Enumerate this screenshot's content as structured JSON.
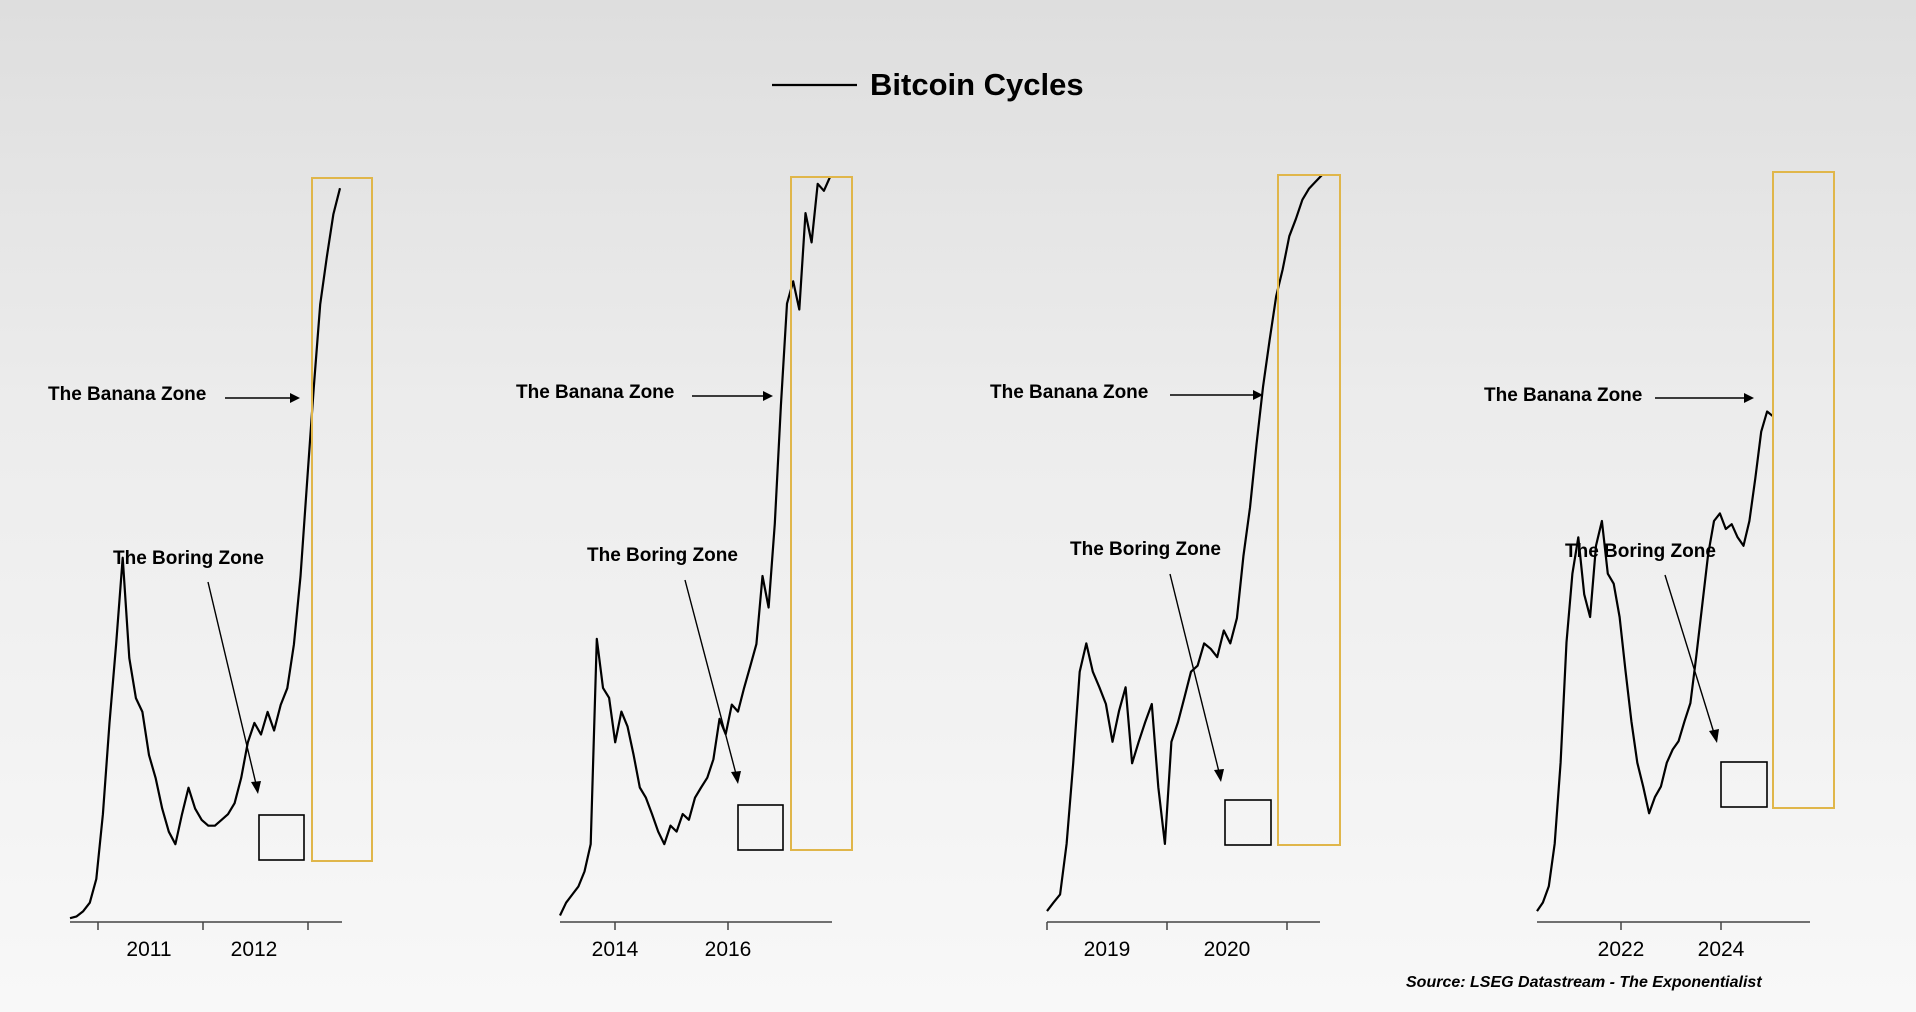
{
  "chart_data": {
    "type": "line",
    "title": "Bitcoin Cycles",
    "legend": {
      "entries": [
        "Bitcoin Cycles"
      ],
      "placement": "top-center"
    },
    "source": "Source: LSEG Datastream - The Exponentialist",
    "grid": false,
    "panels": [
      {
        "x_ticks": [
          "2011",
          "2012"
        ],
        "annotations": [
          "The Banana Zone",
          "The Boring Zone"
        ],
        "series": [
          {
            "values": [
              0.002,
              0.004,
              0.01,
              0.02,
              0.05,
              0.15,
              0.35,
              0.6,
              1.0,
              0.55,
              0.42,
              0.38,
              0.27,
              0.22,
              0.16,
              0.12,
              0.1,
              0.15,
              0.2,
              0.16,
              0.14,
              0.13,
              0.13,
              0.14,
              0.15,
              0.17,
              0.22,
              0.3,
              0.35,
              0.32,
              0.38,
              0.33,
              0.4,
              0.45,
              0.6,
              0.9,
              1.5,
              2.4,
              3.6,
              4.5,
              5.5,
              6.2
            ]
          }
        ]
      },
      {
        "x_ticks": [
          "2014",
          "2016"
        ],
        "annotations": [
          "The Banana Zone",
          "The Boring Zone"
        ],
        "series": [
          {
            "values": [
              0.005,
              0.02,
              0.03,
              0.04,
              0.06,
              0.1,
              0.62,
              0.45,
              0.42,
              0.3,
              0.38,
              0.34,
              0.27,
              0.2,
              0.18,
              0.15,
              0.12,
              0.1,
              0.13,
              0.12,
              0.15,
              0.14,
              0.18,
              0.2,
              0.22,
              0.26,
              0.36,
              0.32,
              0.4,
              0.38,
              0.45,
              0.52,
              0.6,
              0.9,
              0.75,
              1.2,
              2.2,
              3.6,
              4.0,
              3.5,
              5.5,
              4.8,
              6.3,
              6.1,
              6.5
            ]
          }
        ]
      },
      {
        "x_ticks": [
          "2019",
          "2020"
        ],
        "annotations": [
          "The Banana Zone",
          "The Boring Zone"
        ],
        "series": [
          {
            "values": [
              0.01,
              0.02,
              0.03,
              0.1,
              0.25,
              0.5,
              0.6,
              0.5,
              0.45,
              0.4,
              0.3,
              0.38,
              0.45,
              0.25,
              0.3,
              0.35,
              0.4,
              0.2,
              0.1,
              0.3,
              0.35,
              0.42,
              0.5,
              0.52,
              0.6,
              0.58,
              0.55,
              0.65,
              0.6,
              0.7,
              1.0,
              1.3,
              1.8,
              2.4,
              3.0,
              3.7,
              4.2,
              4.9,
              5.3,
              5.8,
              6.1,
              6.3,
              6.5
            ]
          }
        ]
      },
      {
        "x_ticks": [
          "2022",
          "2024"
        ],
        "annotations": [
          "The Banana Zone",
          "The Boring Zone"
        ],
        "series": [
          {
            "values": [
              0.01,
              0.02,
              0.04,
              0.1,
              0.25,
              0.6,
              0.9,
              1.1,
              0.8,
              0.7,
              1.05,
              1.2,
              0.9,
              0.85,
              0.7,
              0.5,
              0.35,
              0.25,
              0.2,
              0.15,
              0.18,
              0.2,
              0.25,
              0.28,
              0.3,
              0.35,
              0.4,
              0.55,
              0.75,
              1.0,
              1.2,
              1.25,
              1.15,
              1.18,
              1.1,
              1.05,
              1.2,
              1.5,
              1.9,
              2.1,
              2.05
            ]
          }
        ]
      }
    ]
  }
}
